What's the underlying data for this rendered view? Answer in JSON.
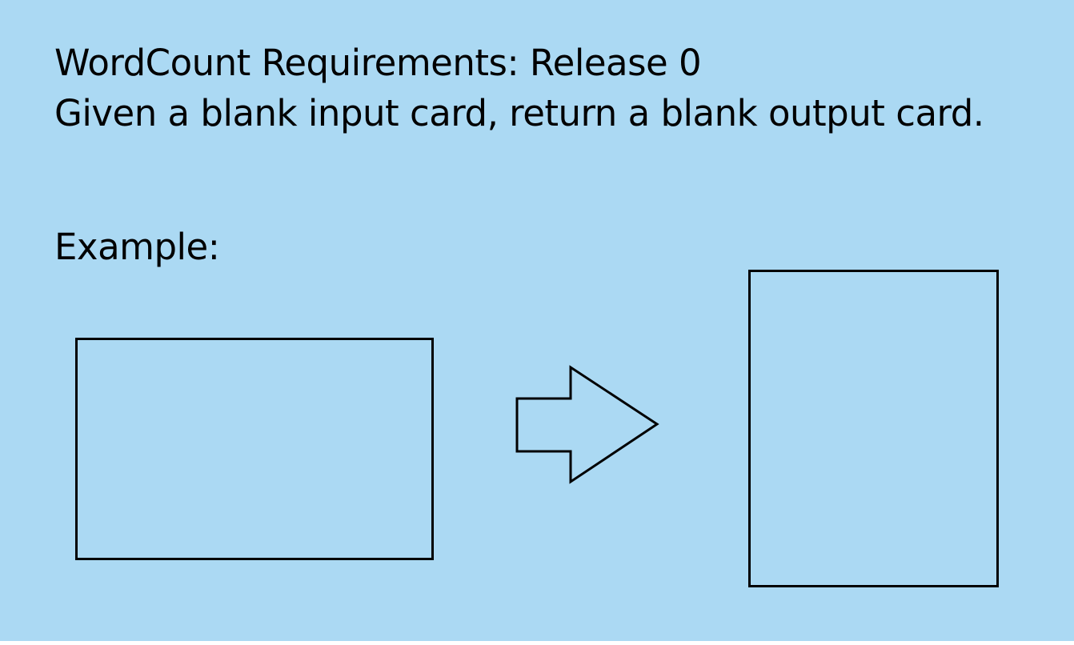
{
  "slide": {
    "title": "WordCount Requirements: Release 0",
    "requirement": "Given a blank input card, return a blank output card.",
    "example_label": "Example:"
  },
  "colors": {
    "background": "#abd9f3",
    "stroke": "#000000"
  },
  "icons": {
    "arrow": "right-arrow-outline-icon"
  }
}
